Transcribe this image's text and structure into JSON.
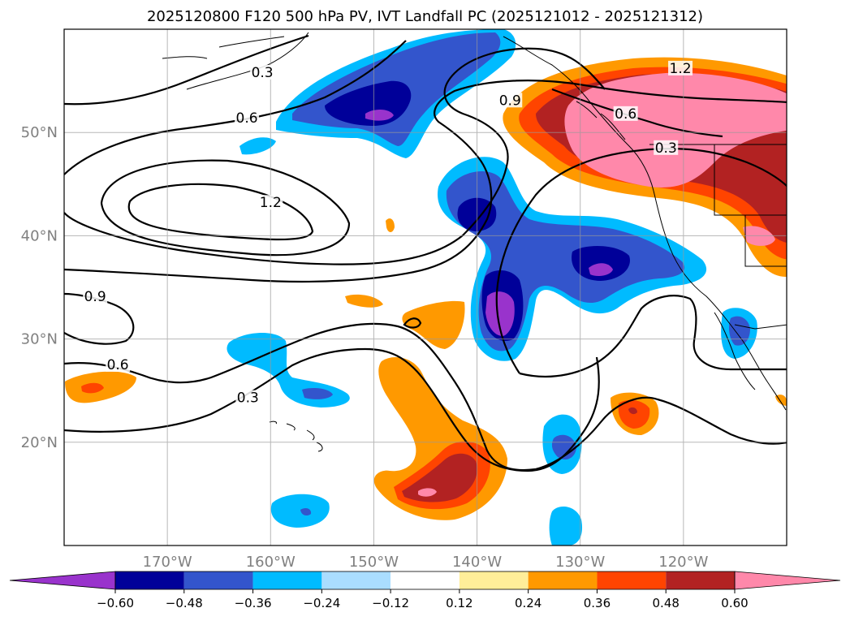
{
  "title": "2025120800 F120 500 hPa PV, IVT Landfall PC (2025121012 - 2025121312)",
  "map": {
    "lon_range": [
      -180,
      -110
    ],
    "lat_range": [
      10,
      60
    ],
    "lon_ticks": [
      {
        "value": -170,
        "label": "170°W"
      },
      {
        "value": -160,
        "label": "160°W"
      },
      {
        "value": -150,
        "label": "150°W"
      },
      {
        "value": -140,
        "label": "140°W"
      },
      {
        "value": -130,
        "label": "130°W"
      },
      {
        "value": -120,
        "label": "120°W"
      }
    ],
    "lat_ticks": [
      {
        "value": 20,
        "label": "20°N"
      },
      {
        "value": 30,
        "label": "30°N"
      },
      {
        "value": 40,
        "label": "40°N"
      },
      {
        "value": 50,
        "label": "50°N"
      }
    ],
    "gridlines": true
  },
  "contours": {
    "labels": [
      {
        "text": "0.3",
        "lon": -160.8,
        "lat": 55.6
      },
      {
        "text": "0.6",
        "lon": -162.3,
        "lat": 51.2
      },
      {
        "text": "1.2",
        "lon": -160.0,
        "lat": 43.0
      },
      {
        "text": "0.9",
        "lon": -177.0,
        "lat": 33.9
      },
      {
        "text": "0.6",
        "lon": -174.8,
        "lat": 27.3
      },
      {
        "text": "0.3",
        "lon": -162.2,
        "lat": 24.1
      },
      {
        "text": "0.9",
        "lon": -136.8,
        "lat": 52.9
      },
      {
        "text": "1.2",
        "lon": -120.3,
        "lat": 56.0
      },
      {
        "text": "0.6",
        "lon": -125.6,
        "lat": 51.6
      },
      {
        "text": "0.3",
        "lon": -121.7,
        "lat": 48.3
      }
    ]
  },
  "colorbar": {
    "colors": [
      "#9933cc",
      "#000099",
      "#3355cc",
      "#00bbff",
      "#aaddff",
      "#ffffff",
      "#ffee99",
      "#ff9900",
      "#ff4400",
      "#b22222",
      "#ff88aa"
    ],
    "ticks": [
      "−0.60",
      "−0.48",
      "−0.36",
      "−0.24",
      "−0.12",
      "0.12",
      "0.24",
      "0.36",
      "0.48",
      "0.60"
    ],
    "extend": "both"
  }
}
